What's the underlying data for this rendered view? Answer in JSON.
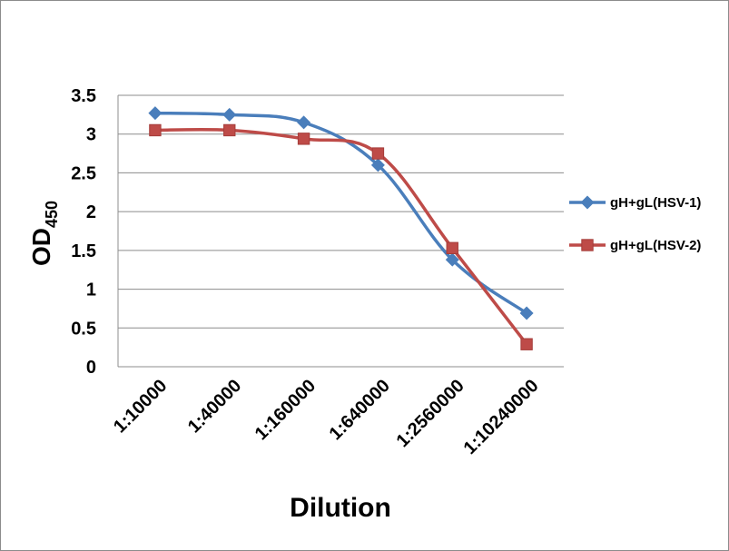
{
  "chart_data": {
    "type": "line",
    "categories": [
      "1:10000",
      "1:40000",
      "1:160000",
      "1:640000",
      "1:2560000",
      "1:10240000"
    ],
    "series": [
      {
        "name": "gH+gL(HSV-1)",
        "color": "#4a7ebb",
        "marker": "diamond",
        "values": [
          3.27,
          3.25,
          3.15,
          2.6,
          1.38,
          0.69
        ]
      },
      {
        "name": "gH+gL(HSV-2)",
        "color": "#be4b48",
        "marker": "square",
        "values": [
          3.05,
          3.05,
          2.94,
          2.75,
          1.53,
          0.29
        ]
      }
    ],
    "ylabel_main": "OD",
    "ylabel_sub": "450",
    "xlabel": "Dilution",
    "ylim": [
      0,
      3.5
    ],
    "yticks": [
      "0",
      "0.5",
      "1",
      "1.5",
      "2",
      "2.5",
      "3",
      "3.5"
    ],
    "grid": "horizontal",
    "legend_position": "right",
    "smoothed": true
  }
}
